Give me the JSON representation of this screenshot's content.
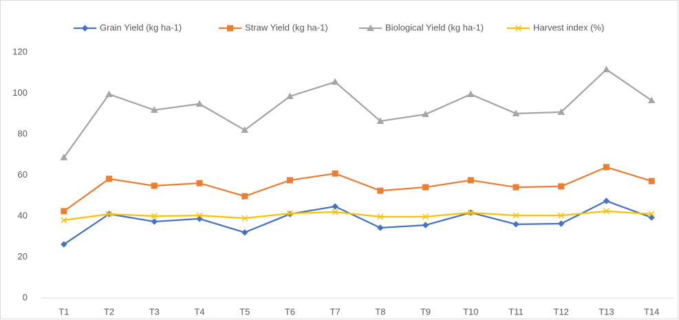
{
  "chart_data": {
    "type": "line",
    "categories": [
      "T1",
      "T2",
      "T3",
      "T4",
      "T5",
      "T6",
      "T7",
      "T8",
      "T9",
      "T10",
      "T11",
      "T12",
      "T13",
      "T14"
    ],
    "series": [
      {
        "name": "Grain Yield (kg ha-1)",
        "color": "#4472c4",
        "marker": "diamond",
        "values": [
          26.2,
          41,
          37.3,
          38.7,
          32,
          41,
          44.7,
          34.3,
          35.6,
          41.7,
          36,
          36.3,
          47.4,
          39.3
        ]
      },
      {
        "name": "Straw Yield (kg ha-1)",
        "color": "#ed7d31",
        "marker": "square",
        "values": [
          42.4,
          58.2,
          54.8,
          56.1,
          49.7,
          57.5,
          60.8,
          52.4,
          54.1,
          57.5,
          54.1,
          54.5,
          63.9,
          57.1
        ]
      },
      {
        "name": "Biological Yield (kg ha-1)",
        "color": "#a5a5a5",
        "marker": "triangle",
        "values": [
          68.6,
          99.5,
          91.8,
          94.8,
          82,
          98.5,
          105.5,
          86.4,
          89.7,
          99.5,
          90.1,
          90.8,
          111.6,
          96.5
        ]
      },
      {
        "name": "Harvest index (%)",
        "color": "#ffc000",
        "marker": "x",
        "values": [
          38,
          41,
          40,
          40.3,
          39,
          41.3,
          42,
          39.7,
          39.7,
          41.7,
          40.3,
          40.3,
          42.4,
          41
        ]
      }
    ],
    "ylim": [
      0,
      120
    ],
    "yticks": [
      0,
      20,
      40,
      60,
      80,
      100,
      120
    ],
    "grid": false,
    "legend": "top"
  }
}
